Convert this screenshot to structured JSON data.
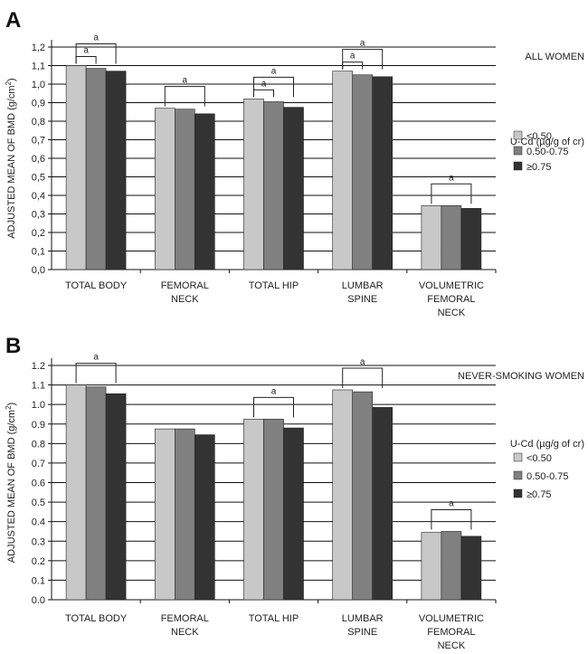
{
  "chart_data": [
    {
      "type": "bar",
      "panel_label": "A",
      "subtitle": "ALL WOMEN",
      "ylabel_main": "ADJUSTED MEAN OF BMD (g/cm",
      "ylabel_sup": "2",
      "ylabel_end": ")",
      "ylim": [
        0,
        1.2
      ],
      "yticks": [
        "0,0",
        "0,1",
        "0,2",
        "0,3",
        "0,4",
        "0,5",
        "0,6",
        "0,7",
        "0,8",
        "0,9",
        "1,0",
        "1,1",
        "1,2"
      ],
      "grid": true,
      "legend_title": "U-Cd (µg/g of cr)",
      "legend_position": "right",
      "categories": [
        [
          "TOTAL BODY"
        ],
        [
          "FEMORAL",
          "NECK"
        ],
        [
          "TOTAL HIP"
        ],
        [
          "LUMBAR",
          "SPINE"
        ],
        [
          "VOLUMETRIC",
          "FEMORAL",
          "NECK"
        ]
      ],
      "series": [
        {
          "name": "<0.50",
          "color": "#c8c8c8",
          "values": [
            1.1,
            0.87,
            0.92,
            1.07,
            0.345
          ]
        },
        {
          "name": "0.50-0.75",
          "color": "#808080",
          "values": [
            1.085,
            0.865,
            0.905,
            1.05,
            0.345
          ]
        },
        {
          "name": "≥0.75",
          "color": "#333333",
          "values": [
            1.07,
            0.84,
            0.875,
            1.04,
            0.33
          ]
        }
      ],
      "significance": [
        {
          "category": 0,
          "from": 0,
          "to": 2,
          "label": "a"
        },
        {
          "category": 0,
          "from": 0,
          "to": 1,
          "label": "a"
        },
        {
          "category": 1,
          "from": 0,
          "to": 2,
          "label": "a"
        },
        {
          "category": 2,
          "from": 0,
          "to": 2,
          "label": "a"
        },
        {
          "category": 2,
          "from": 0,
          "to": 1,
          "label": "a"
        },
        {
          "category": 3,
          "from": 0,
          "to": 2,
          "label": "a"
        },
        {
          "category": 3,
          "from": 0,
          "to": 1,
          "label": "a"
        },
        {
          "category": 4,
          "from": 0,
          "to": 2,
          "label": "a"
        }
      ]
    },
    {
      "type": "bar",
      "panel_label": "B",
      "subtitle": "NEVER-SMOKING WOMEN",
      "ylabel_main": "ADJUSTED MEAN OF BMD (g/cm",
      "ylabel_sup": "2",
      "ylabel_end": ")",
      "ylim": [
        0,
        1.2
      ],
      "yticks": [
        "0.0",
        "0.1",
        "0.2",
        "0.3",
        "0.4",
        "0.5",
        "0.6",
        "0.7",
        "0.8",
        "0.9",
        "1.0",
        "1.1",
        "1.2"
      ],
      "grid": true,
      "legend_title": "U-Cd (µg/g of cr)",
      "legend_position": "right",
      "categories": [
        [
          "TOTAL BODY"
        ],
        [
          "FEMORAL",
          "NECK"
        ],
        [
          "TOTAL HIP"
        ],
        [
          "LUMBAR",
          "SPINE"
        ],
        [
          "VOLUMETRIC",
          "FEMORAL",
          "NECK"
        ]
      ],
      "series": [
        {
          "name": "<0.50",
          "color": "#c8c8c8",
          "values": [
            1.1,
            0.875,
            0.925,
            1.075,
            0.345
          ]
        },
        {
          "name": "0.50-0.75",
          "color": "#808080",
          "values": [
            1.09,
            0.875,
            0.925,
            1.065,
            0.35
          ]
        },
        {
          "name": "≥0.75",
          "color": "#333333",
          "values": [
            1.055,
            0.845,
            0.88,
            0.985,
            0.325
          ]
        }
      ],
      "significance": [
        {
          "category": 0,
          "from": 0,
          "to": 2,
          "label": "a"
        },
        {
          "category": 2,
          "from": 0,
          "to": 2,
          "label": "a"
        },
        {
          "category": 3,
          "from": 0,
          "to": 2,
          "label": "a"
        },
        {
          "category": 4,
          "from": 0,
          "to": 2,
          "label": "a"
        }
      ]
    }
  ]
}
